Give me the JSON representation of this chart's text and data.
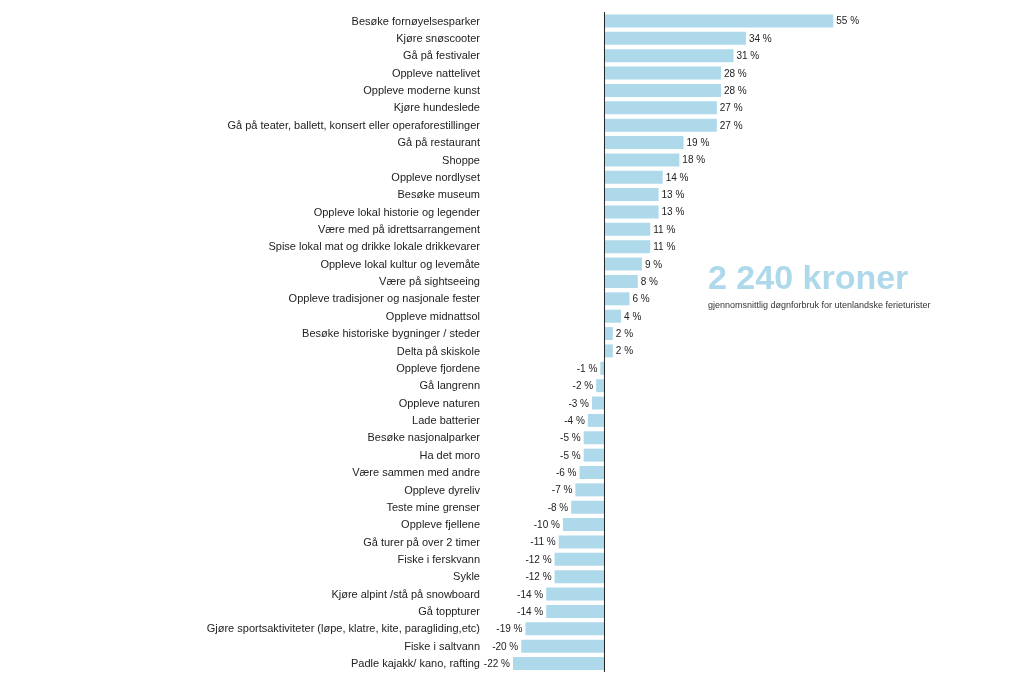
{
  "chart_data": {
    "type": "bar",
    "orientation": "horizontal",
    "tick_labels": "y",
    "color": "#aed9ea",
    "categories": [
      "Besøke fornøyelsesparker",
      "Kjøre snøscooter",
      "Gå på festivaler",
      "Oppleve nattelivet",
      "Oppleve moderne kunst",
      "Kjøre hundeslede",
      "Gå på teater, ballett, konsert eller operaforestillinger",
      "Gå på restaurant",
      "Shoppe",
      "Oppleve nordlyset",
      "Besøke museum",
      "Oppleve lokal historie og legender",
      "Være med på idrettsarrangement",
      "Spise lokal mat og drikke lokale drikkevarer",
      "Oppleve lokal kultur og levemåte",
      "Være på sightseeing",
      "Oppleve tradisjoner og nasjonale fester",
      "Oppleve midnattsol",
      "Besøke historiske bygninger / steder",
      "Delta på skiskole",
      "Oppleve fjordene",
      "Gå langrenn",
      "Oppleve naturen",
      "Lade batterier",
      "Besøke nasjonalparker",
      "Ha det moro",
      "Være sammen med andre",
      "Oppleve dyreliv",
      "Teste mine grenser",
      "Oppleve fjellene",
      "Gå turer på over 2 timer",
      "Fiske i ferskvann",
      "Sykle",
      "Kjøre alpint /stå på snowboard",
      "Gå toppturer",
      "Gjøre sportsaktiviteter (løpe, klatre, kite, paragliding,etc)",
      "Fiske i saltvann",
      "Padle kajakk/ kano, rafting"
    ],
    "values": [
      55,
      34,
      31,
      28,
      28,
      27,
      27,
      19,
      18,
      14,
      13,
      13,
      11,
      11,
      9,
      8,
      6,
      4,
      2,
      2,
      -1,
      -2,
      -3,
      -4,
      -5,
      -5,
      -6,
      -7,
      -8,
      -10,
      -11,
      -12,
      -12,
      -14,
      -14,
      -19,
      -20,
      -22
    ],
    "value_labels": [
      "55 %",
      "34 %",
      "31 %",
      "28 %",
      "28 %",
      "27 %",
      "27 %",
      "19 %",
      "18 %",
      "14 %",
      "13 %",
      "13 %",
      "11 %",
      "11 %",
      "9 %",
      "8 %",
      "6 %",
      "4 %",
      "2 %",
      "2 %",
      "-1 %",
      "-2 %",
      "-3 %",
      "-4 %",
      "-5 %",
      "-5 %",
      "-6 %",
      "-7 %",
      "-8 %",
      "-10 %",
      "-11 %",
      "-12 %",
      "-12 %",
      "-14 %",
      "-14 %",
      "-19 %",
      "-20 %",
      "-22 %"
    ],
    "annotations": [
      "2 240 kroner",
      "gjennomsnittlig døgnforbruk for utenlandske ferieturister"
    ]
  }
}
